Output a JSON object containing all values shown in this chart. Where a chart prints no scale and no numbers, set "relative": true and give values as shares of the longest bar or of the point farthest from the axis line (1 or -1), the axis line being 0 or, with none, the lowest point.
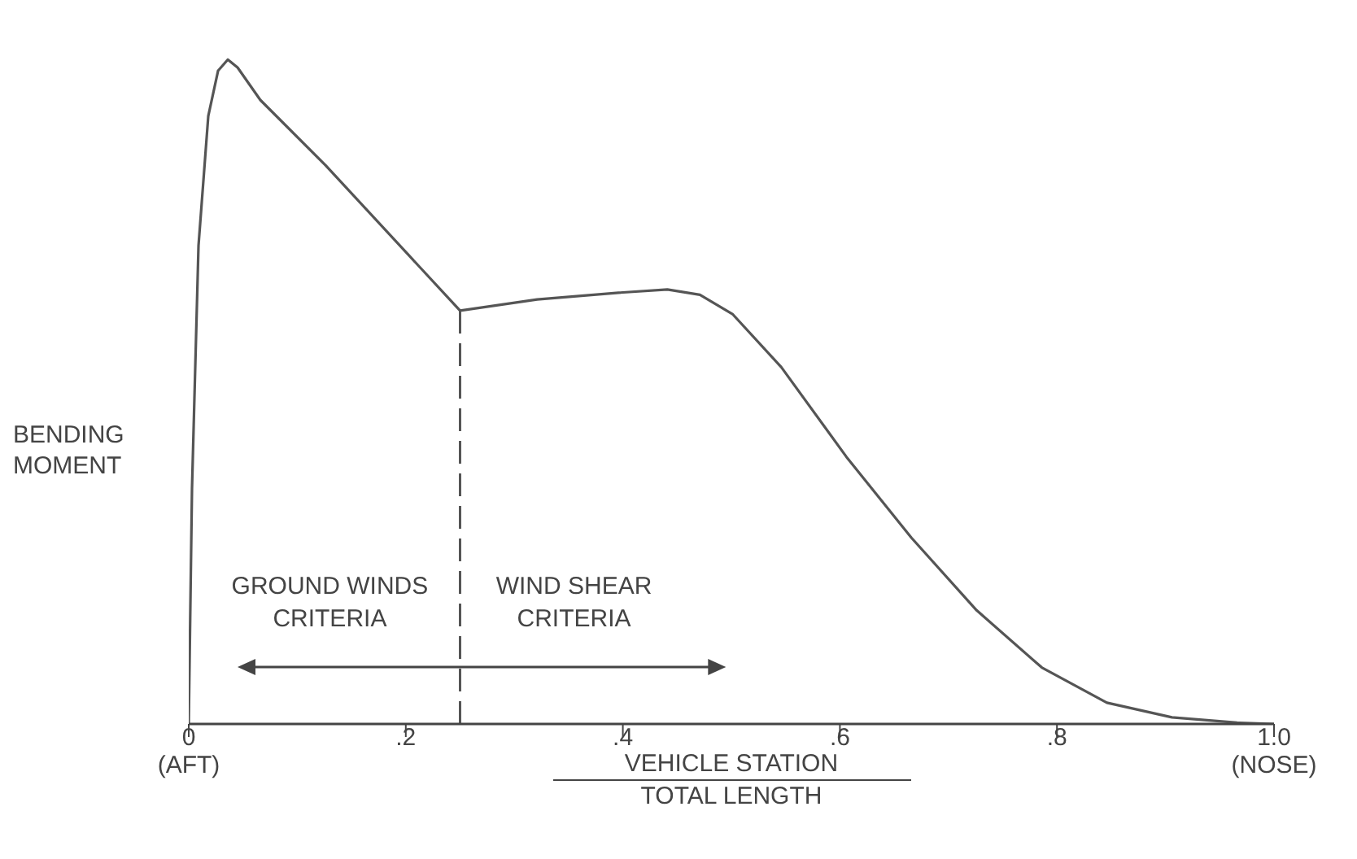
{
  "chart_data": {
    "type": "line",
    "relative": true,
    "ylabel": "BENDING\nMOMENT",
    "xlabel": "VEHICLE STATION\nTOTAL LENGTH",
    "xlim": [
      0,
      1
    ],
    "xticks": [
      {
        "value": 0,
        "label": "0\n(AFT)"
      },
      {
        "value": 0.2,
        "label": ".2"
      },
      {
        "value": 0.4,
        "label": ".4"
      },
      {
        "value": 0.6,
        "label": ".6"
      },
      {
        "value": 0.8,
        "label": ".8"
      },
      {
        "value": 1,
        "label": "1.0\n(NOSE)"
      }
    ],
    "series": [
      {
        "color": "#555555",
        "x": [
          0,
          0.003,
          0.009,
          0.018,
          0.027,
          0.036,
          0.045,
          0.066,
          0.126,
          0.25,
          0.321,
          0.396,
          0.441,
          0.471,
          0.501,
          0.546,
          0.606,
          0.666,
          0.726,
          0.786,
          0.846,
          0.906,
          0.966,
          1.0
        ],
        "values": [
          0,
          0.354,
          0.72,
          0.915,
          0.983,
          1,
          0.988,
          0.939,
          0.841,
          0.622,
          0.639,
          0.649,
          0.654,
          0.646,
          0.617,
          0.537,
          0.402,
          0.28,
          0.171,
          0.085,
          0.032,
          0.01,
          0.002,
          0
        ]
      }
    ],
    "ref_lines": [
      {
        "axis": "x",
        "value": 0.25,
        "line_style": "dashed",
        "color": "#555555"
      }
    ],
    "annotations": [
      "GROUND WINDS\nCRITERIA",
      "WIND SHEAR\nCRITERIA"
    ],
    "marker": "none",
    "line_style": "solid"
  }
}
